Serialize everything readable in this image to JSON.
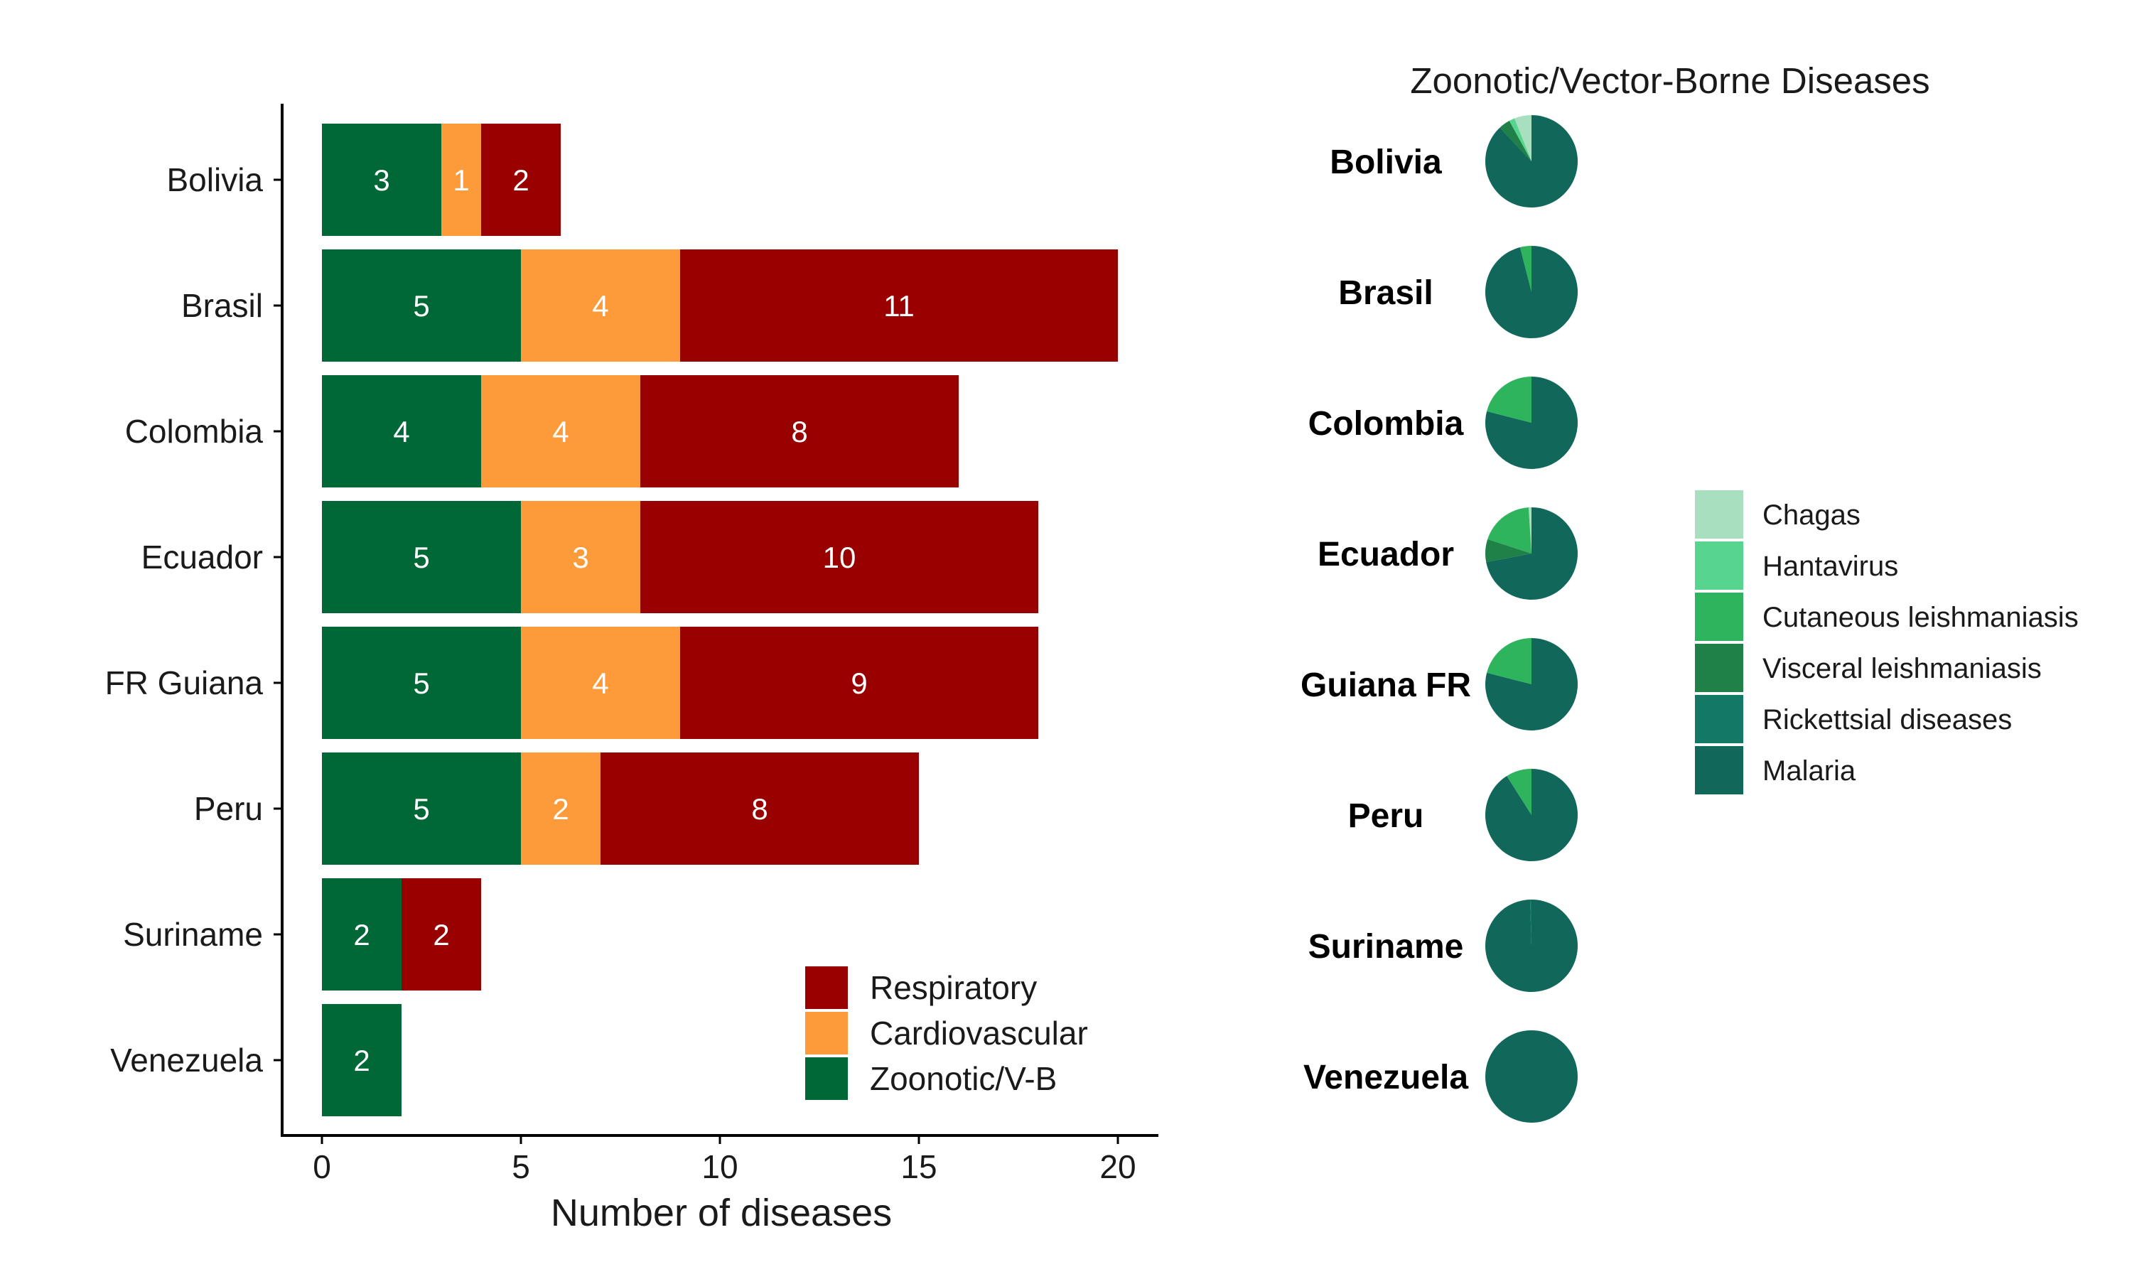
{
  "chart_data": [
    {
      "type": "bar",
      "orientation": "horizontal",
      "stacked": true,
      "categories": [
        "Bolivia",
        "Brasil",
        "Colombia",
        "Ecuador",
        "FR Guiana",
        "Peru",
        "Suriname",
        "Venezuela"
      ],
      "series": [
        {
          "name": "Zoonotic/V-B",
          "color": "#006837",
          "values": [
            3,
            5,
            4,
            5,
            5,
            5,
            2,
            2
          ]
        },
        {
          "name": "Cardiovascular",
          "color": "#fd9b3a",
          "values": [
            1,
            4,
            4,
            3,
            4,
            2,
            0,
            0
          ]
        },
        {
          "name": "Respiratory",
          "color": "#990000",
          "values": [
            2,
            11,
            8,
            10,
            9,
            8,
            2,
            0
          ]
        }
      ],
      "legend_order": [
        "Respiratory",
        "Cardiovascular",
        "Zoonotic/V-B"
      ],
      "legend_position": "bottom-right",
      "xlabel": "Number of diseases",
      "xlim": [
        0,
        21
      ],
      "xticks": [
        0,
        5,
        10,
        15,
        20
      ],
      "grid": false
    },
    {
      "type": "pie",
      "title": "Zoonotic/Vector-Borne Diseases",
      "categories": [
        "Chagas",
        "Hantavirus",
        "Cutaneous leishmaniasis",
        "Visceral leishmaniasis",
        "Rickettsial diseases",
        "Malaria"
      ],
      "colors": [
        "#a8dfbe",
        "#57d48d",
        "#2eb45d",
        "#1f8048",
        "#137865",
        "#10675a"
      ],
      "legend_position": "right",
      "pies": [
        {
          "label": "Bolivia",
          "values": [
            0.06,
            0.02,
            0.0,
            0.04,
            0.0,
            0.88
          ]
        },
        {
          "label": "Brasil",
          "values": [
            0.0,
            0.0,
            0.04,
            0.0,
            0.0,
            0.96
          ]
        },
        {
          "label": "Colombia",
          "values": [
            0.0,
            0.0,
            0.21,
            0.0,
            0.0,
            0.79
          ]
        },
        {
          "label": "Ecuador",
          "values": [
            0.01,
            0.0,
            0.19,
            0.08,
            0.0,
            0.72
          ]
        },
        {
          "label": "Guiana FR",
          "values": [
            0.0,
            0.0,
            0.21,
            0.0,
            0.0,
            0.79
          ]
        },
        {
          "label": "Peru",
          "values": [
            0.0,
            0.0,
            0.09,
            0.0,
            0.0,
            0.91
          ]
        },
        {
          "label": "Suriname",
          "values": [
            0.0,
            0.0,
            0.0,
            0.0,
            0.005,
            0.995
          ]
        },
        {
          "label": "Venezuela",
          "values": [
            0.0,
            0.0,
            0.0,
            0.0,
            0.0,
            1.0
          ]
        }
      ]
    }
  ]
}
